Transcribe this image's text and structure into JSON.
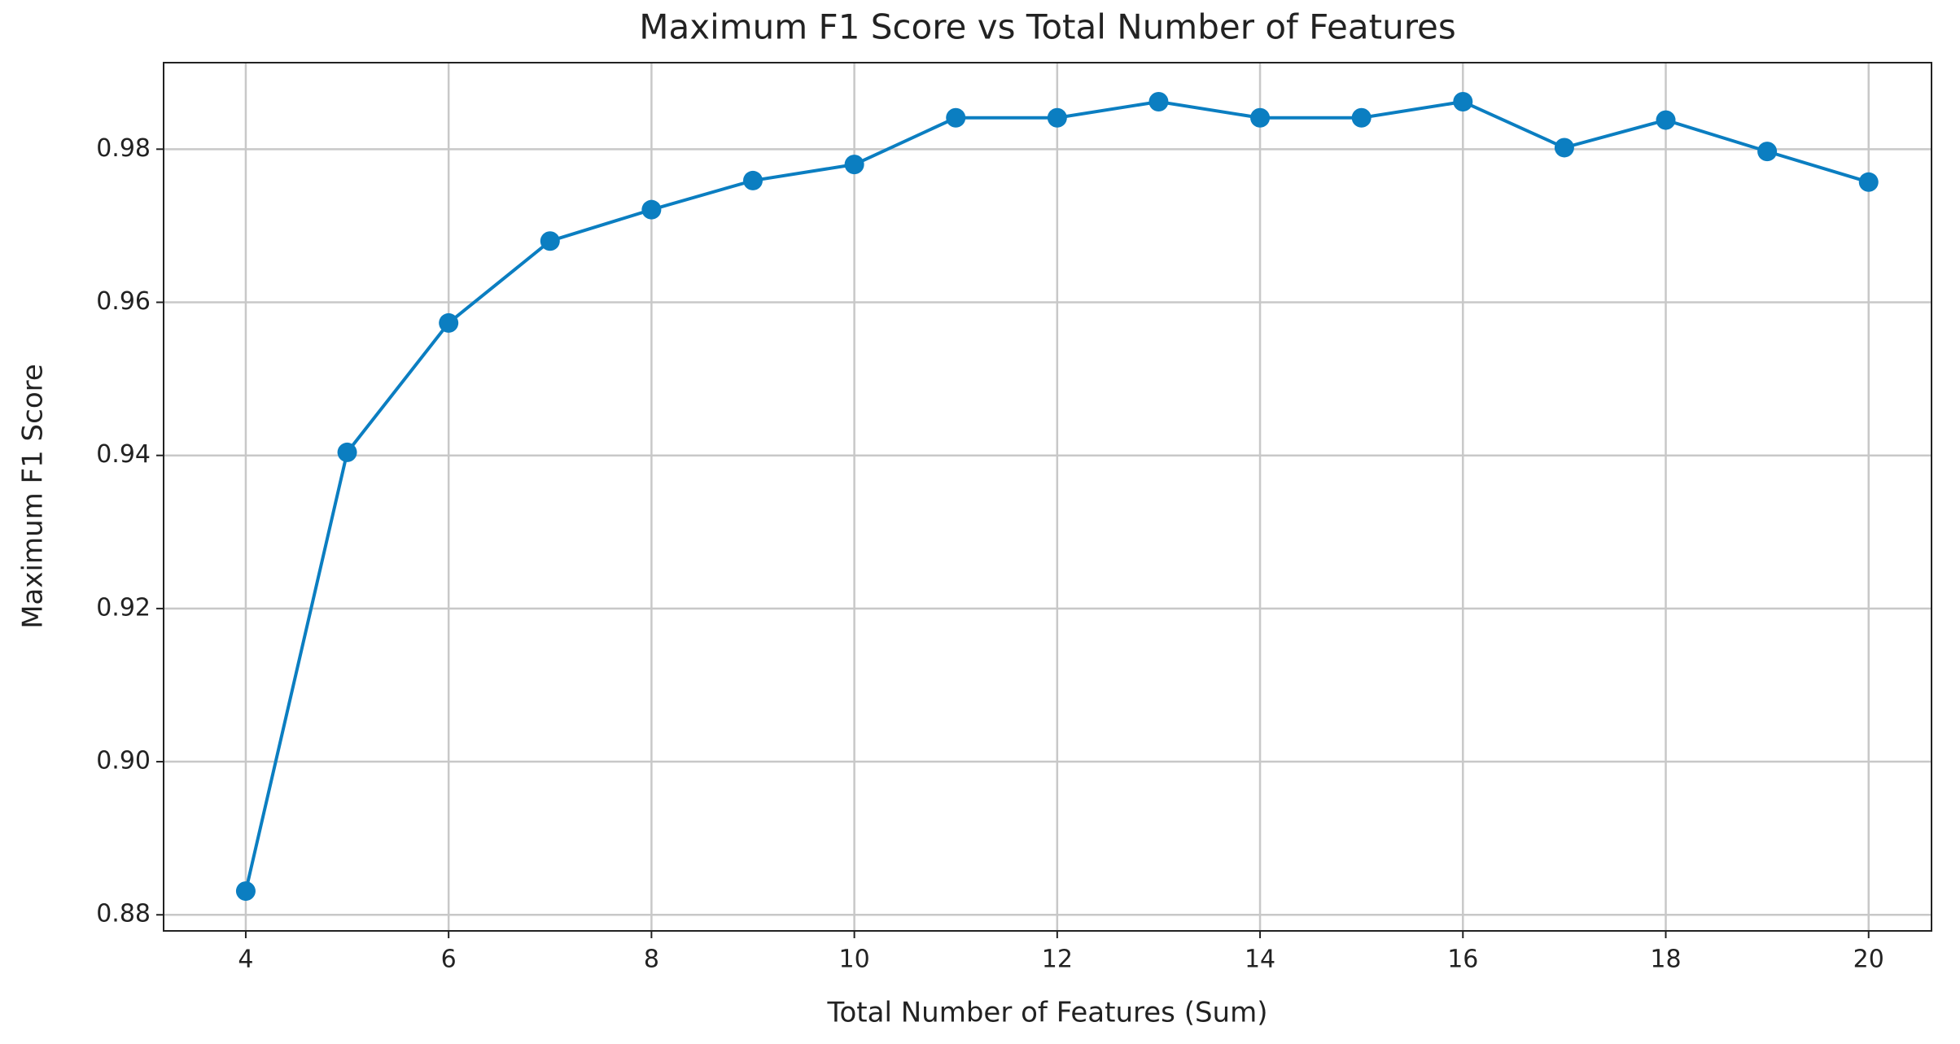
{
  "chart_data": {
    "type": "line",
    "title": "Maximum F1 Score vs Total Number of Features",
    "x_label": "Total Number of Features (Sum)",
    "y_label": "Maximum F1 Score",
    "x": [
      4,
      5,
      6,
      7,
      8,
      9,
      10,
      11,
      12,
      13,
      14,
      15,
      16,
      17,
      18,
      19,
      20
    ],
    "values": [
      0.8831,
      0.9404,
      0.9573,
      0.968,
      0.9721,
      0.9759,
      0.978,
      0.9841,
      0.9841,
      0.9862,
      0.9841,
      0.9841,
      0.9862,
      0.9802,
      0.9838,
      0.9797,
      0.9757
    ],
    "color": "#0b7ec1",
    "xlim": [
      3.19,
      20.62
    ],
    "ylim": [
      0.8779,
      0.9913
    ],
    "xticks": [
      4,
      6,
      8,
      10,
      12,
      14,
      16,
      18,
      20
    ],
    "yticks": [
      0.88,
      {
        "value": 0.9,
        "label": "0.90"
      },
      0.92,
      0.94,
      0.96,
      0.98
    ],
    "grid": true
  }
}
